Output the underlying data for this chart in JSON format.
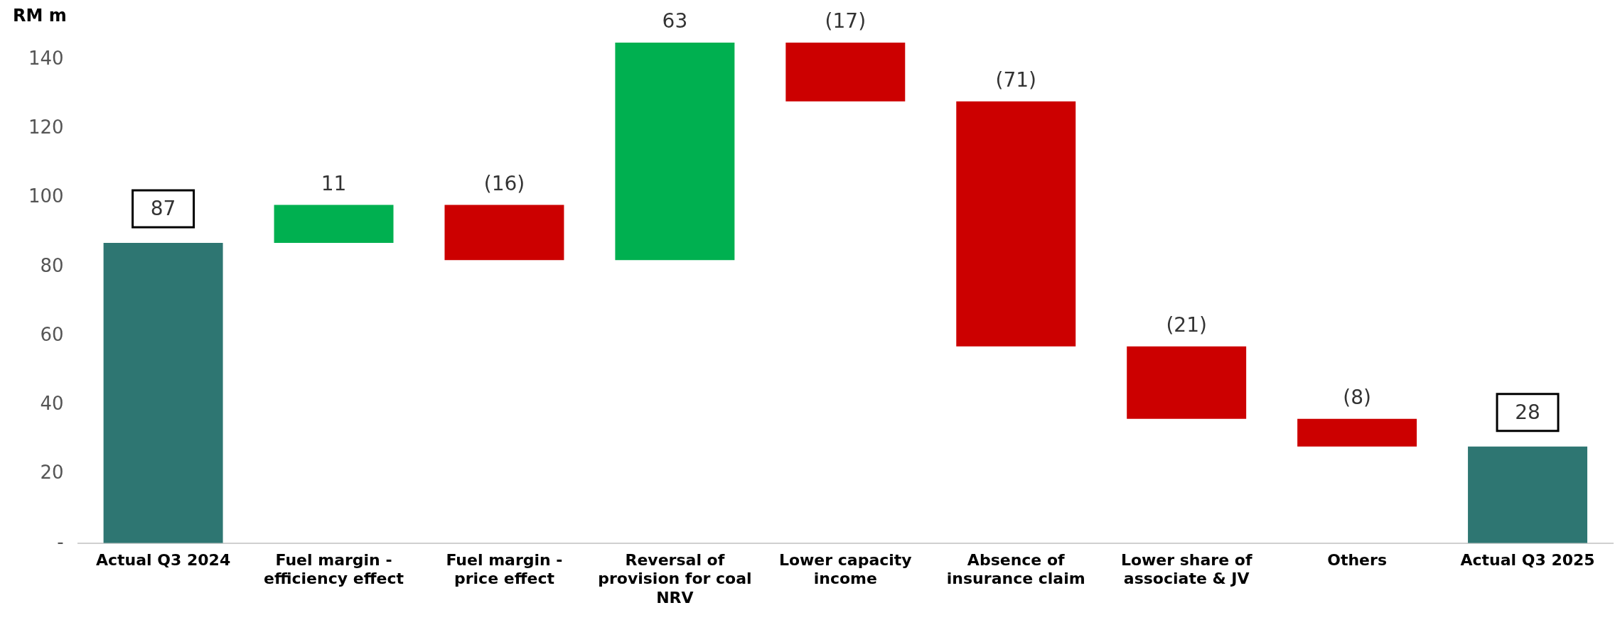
{
  "chart_data": {
    "type": "bar",
    "ylabel": "RM m",
    "categories": [
      "Actual Q3 2024",
      "Fuel margin - efficiency effect",
      "Fuel margin - price effect",
      "Reversal of provision for coal NRV",
      "Lower capacity income",
      "Absence of insurance claim",
      "Lower share of associate & JV",
      "Others",
      "Actual Q3 2025"
    ],
    "values": [
      87,
      11,
      -16,
      63,
      -17,
      -71,
      -21,
      -8,
      28
    ],
    "base": [
      null,
      87,
      98,
      82,
      145,
      128,
      57,
      36,
      null
    ],
    "colors": [
      "#2e7672",
      "#00b050",
      "#cc0000",
      "#00b050",
      "#cc0000",
      "#cc0000",
      "#cc0000",
      "#cc0000",
      "#2e7672"
    ],
    "value_labels": [
      "87",
      "11",
      "(16)",
      "63",
      "(17)",
      "(71)",
      "(21)",
      "(8)",
      "28"
    ],
    "ylim": [
      0,
      145
    ],
    "yticks": [
      {
        "value": 0,
        "label": "-"
      },
      20,
      40,
      60,
      80,
      100,
      120,
      140
    ],
    "grid": false,
    "legend": false
  }
}
